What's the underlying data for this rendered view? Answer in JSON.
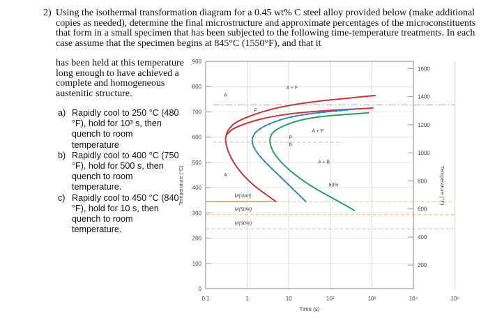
{
  "question": {
    "number": "2)",
    "intro": "Using the isothermal transformation diagram for a 0.45 wt% C steel alloy provided below (make additional copies as needed), determine the final microstructure and approximate percentages of the microconstituents that form in a small specimen that has been subjected to the following time-temperature treatments. In each case assume that the specimen begins at 845°C (1550°F), and that it",
    "intro_cont": "has been held at this temperature long enough to have achieved a complete and homogeneous austenitic structure.",
    "items": [
      {
        "label": "a)",
        "text": "Rapidly cool to 250 °C (480 °F), hold for 10³ s, then quench to room temperature"
      },
      {
        "label": "b)",
        "text": "Rapidly cool to 400 °C (750 °F), hold for 500 s, then quench to room temperature."
      },
      {
        "label": "c)",
        "text": "Rapidly cool to 450 °C (840 °F), hold for 10 s, then quench to room temperature."
      }
    ]
  },
  "chart_data": {
    "type": "line",
    "xlabel": "Time (s)",
    "ylabel": "Temperature (°C)",
    "ylabel_right": "Temperature (°F)",
    "x_scale": "log",
    "xlim": [
      0.1,
      100000
    ],
    "ylim": [
      0,
      900
    ],
    "x_ticks": [
      {
        "v": 0.1,
        "l": "0.1"
      },
      {
        "v": 1,
        "l": "1"
      },
      {
        "v": 10,
        "l": "10"
      },
      {
        "v": 100,
        "l": "10²"
      },
      {
        "v": 1000,
        "l": "10³"
      },
      {
        "v": 10000,
        "l": "10⁴"
      },
      {
        "v": 100000,
        "l": "10⁵"
      }
    ],
    "y_ticks": [
      "0",
      "100",
      "200",
      "300",
      "400",
      "500",
      "600",
      "700",
      "800",
      "900"
    ],
    "y_right_ticks": [
      "200",
      "400",
      "600",
      "800",
      "1000",
      "1200",
      "1400",
      "1600"
    ],
    "grid": true,
    "colors": {
      "start": "#c0393b",
      "ferrite": "#c0393b",
      "fifty": "#2f7fc4",
      "finish": "#2e9a6a",
      "martensite": "#e8a050",
      "eutectoid": "#999999"
    },
    "series": [
      {
        "key": "start",
        "style": "solid",
        "points": [
          [
            4.9,
            345
          ],
          [
            1.12,
            420
          ],
          [
            0.44,
            502
          ],
          [
            0.29,
            577
          ],
          [
            0.32,
            624
          ],
          [
            0.58,
            668
          ],
          [
            8.1,
            729
          ],
          [
            1200,
            765
          ]
        ]
      },
      {
        "key": "ferrite",
        "style": "solid",
        "points": [
          [
            0.32,
            610
          ],
          [
            0.5,
            640
          ],
          [
            2.8,
            679
          ],
          [
            28,
            701
          ],
          [
            1050,
            715
          ]
        ]
      },
      {
        "key": "fifty",
        "style": "dashed",
        "points": [
          [
            25.7,
            345
          ],
          [
            5.9,
            447
          ],
          [
            1.78,
            530
          ],
          [
            1.17,
            591
          ],
          [
            2.04,
            640
          ],
          [
            12.9,
            687
          ],
          [
            457,
            712
          ]
        ]
      },
      {
        "key": "finish",
        "style": "solid",
        "points": [
          [
            380,
            309
          ],
          [
            240,
            329
          ],
          [
            23.4,
            420
          ],
          [
            5.1,
            513
          ],
          [
            3.2,
            585
          ],
          [
            4.5,
            632
          ],
          [
            28,
            679
          ],
          [
            830,
            696
          ]
        ]
      }
    ],
    "reference_lines": [
      {
        "name": "eutectoid",
        "temp": 727,
        "style": "dashdot",
        "from": 0.15,
        "to": 100000
      },
      {
        "name": "pearlite-bainite",
        "temp": 580,
        "style": "dashed",
        "from": 0.15,
        "to": 200
      },
      {
        "name": "M(start)",
        "temp": 345,
        "style": "solid-then-dashed",
        "solid_to": 4.9,
        "from": 0.1,
        "to": 100000
      },
      {
        "name": "M(50%)",
        "temp": 293,
        "style": "dashed",
        "from": 0.1,
        "to": 100000
      },
      {
        "name": "M(90%)",
        "temp": 237,
        "style": "dashed",
        "from": 0.1,
        "to": 100000
      }
    ],
    "annotations": [
      {
        "text": "A",
        "t": 0.3,
        "T": 760
      },
      {
        "text": "A + F",
        "t": 12,
        "T": 790
      },
      {
        "text": "F",
        "t": 1.6,
        "T": 700
      },
      {
        "text": "A + P",
        "t": 50,
        "T": 618
      },
      {
        "text": "P",
        "t": 11,
        "T": 592
      },
      {
        "text": "B",
        "t": 11,
        "T": 565
      },
      {
        "text": "A + B",
        "t": 70,
        "T": 495
      },
      {
        "text": "A",
        "t": 0.3,
        "T": 445
      },
      {
        "text": "50%",
        "t": 120,
        "T": 405
      },
      {
        "text": "M(start)",
        "t": 0.5,
        "T": 362
      },
      {
        "text": "M(50%)",
        "t": 0.5,
        "T": 308
      },
      {
        "text": "M(90%)",
        "t": 0.5,
        "T": 252
      }
    ]
  }
}
